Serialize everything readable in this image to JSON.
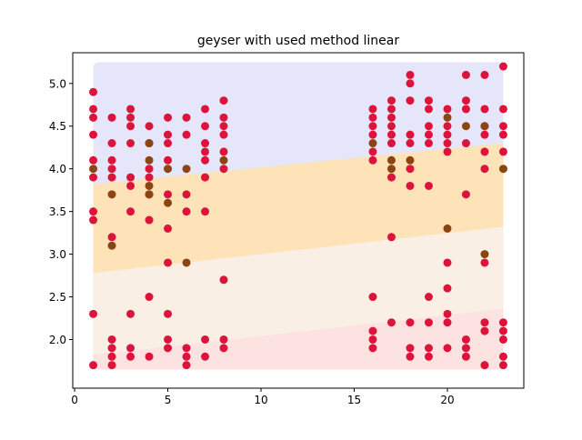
{
  "chart_data": {
    "type": "scatter",
    "title": "geyser with used method linear",
    "xlabel": "",
    "ylabel": "",
    "xlim": [
      -0.1,
      24.1
    ],
    "ylim": [
      1.43,
      5.36
    ],
    "xticks": [
      0,
      5,
      10,
      15,
      20
    ],
    "xtick_labels": [
      "0",
      "5",
      "10",
      "15",
      "20"
    ],
    "yticks": [
      2.0,
      2.5,
      3.0,
      3.5,
      4.0,
      4.5,
      5.0
    ],
    "ytick_labels": [
      "2.0",
      "2.5",
      "3.0",
      "3.5",
      "4.0",
      "4.5",
      "5.0"
    ],
    "grid": false,
    "legend": "none",
    "background_regions": {
      "description": "shaded decision regions from a linear fit (bottom to top)",
      "x_range": [
        1,
        23
      ],
      "y_range": [
        1.65,
        5.25
      ],
      "regions": [
        {
          "color": "#fde2e2",
          "upper_boundary": [
            [
              1,
              1.82
            ],
            [
              23,
              2.36
            ]
          ]
        },
        {
          "color": "#faefe4",
          "upper_boundary": [
            [
              1,
              2.78
            ],
            [
              23,
              3.32
            ]
          ]
        },
        {
          "color": "#fde3b7",
          "upper_boundary": [
            [
              1,
              3.82
            ],
            [
              23,
              4.3
            ]
          ]
        },
        {
          "color": "#e6e6fa",
          "upper_boundary": null
        }
      ]
    },
    "series": [
      {
        "color": "#dc143c",
        "points": [
          [
            1,
            4.9
          ],
          [
            1,
            4.7
          ],
          [
            1,
            4.6
          ],
          [
            1,
            4.4
          ],
          [
            1,
            4.1
          ],
          [
            1,
            3.9
          ],
          [
            1,
            3.5
          ],
          [
            1,
            3.4
          ],
          [
            1,
            2.3
          ],
          [
            1,
            1.7
          ],
          [
            2,
            4.6
          ],
          [
            2,
            4.3
          ],
          [
            2,
            4.1
          ],
          [
            2,
            4.0
          ],
          [
            2,
            3.9
          ],
          [
            2,
            3.2
          ],
          [
            2,
            2.0
          ],
          [
            2,
            1.9
          ],
          [
            2,
            1.8
          ],
          [
            2,
            1.7
          ],
          [
            3,
            4.7
          ],
          [
            3,
            4.6
          ],
          [
            3,
            4.5
          ],
          [
            3,
            4.3
          ],
          [
            3,
            3.9
          ],
          [
            3,
            3.8
          ],
          [
            3,
            3.5
          ],
          [
            3,
            2.3
          ],
          [
            3,
            1.9
          ],
          [
            3,
            1.8
          ],
          [
            4,
            4.5
          ],
          [
            4,
            4.3
          ],
          [
            4,
            4.0
          ],
          [
            4,
            3.9
          ],
          [
            4,
            3.7
          ],
          [
            4,
            3.4
          ],
          [
            4,
            2.5
          ],
          [
            4,
            1.8
          ],
          [
            5,
            4.6
          ],
          [
            5,
            4.4
          ],
          [
            5,
            4.3
          ],
          [
            5,
            4.1
          ],
          [
            5,
            3.7
          ],
          [
            5,
            3.3
          ],
          [
            5,
            2.9
          ],
          [
            5,
            2.3
          ],
          [
            5,
            2.0
          ],
          [
            5,
            1.9
          ],
          [
            6,
            4.6
          ],
          [
            6,
            4.4
          ],
          [
            6,
            3.7
          ],
          [
            6,
            3.5
          ],
          [
            6,
            1.9
          ],
          [
            6,
            1.8
          ],
          [
            6,
            1.7
          ],
          [
            7,
            4.7
          ],
          [
            7,
            4.5
          ],
          [
            7,
            4.3
          ],
          [
            7,
            4.2
          ],
          [
            7,
            4.1
          ],
          [
            7,
            3.9
          ],
          [
            7,
            3.5
          ],
          [
            7,
            2.0
          ],
          [
            7,
            1.8
          ],
          [
            8,
            4.8
          ],
          [
            8,
            4.6
          ],
          [
            8,
            4.5
          ],
          [
            8,
            4.4
          ],
          [
            8,
            4.2
          ],
          [
            8,
            4.0
          ],
          [
            8,
            2.7
          ],
          [
            8,
            2.0
          ],
          [
            8,
            1.9
          ],
          [
            16,
            4.7
          ],
          [
            16,
            4.6
          ],
          [
            16,
            4.5
          ],
          [
            16,
            4.4
          ],
          [
            16,
            4.2
          ],
          [
            16,
            4.1
          ],
          [
            16,
            2.5
          ],
          [
            16,
            2.1
          ],
          [
            16,
            2.0
          ],
          [
            16,
            1.9
          ],
          [
            17,
            4.8
          ],
          [
            17,
            4.7
          ],
          [
            17,
            4.6
          ],
          [
            17,
            4.5
          ],
          [
            17,
            4.4
          ],
          [
            17,
            4.3
          ],
          [
            17,
            3.9
          ],
          [
            17,
            3.2
          ],
          [
            17,
            2.2
          ],
          [
            18,
            5.1
          ],
          [
            18,
            5.0
          ],
          [
            18,
            4.8
          ],
          [
            18,
            4.4
          ],
          [
            18,
            4.3
          ],
          [
            18,
            4.0
          ],
          [
            18,
            3.8
          ],
          [
            18,
            2.2
          ],
          [
            18,
            1.9
          ],
          [
            18,
            1.8
          ],
          [
            19,
            4.8
          ],
          [
            19,
            4.7
          ],
          [
            19,
            4.5
          ],
          [
            19,
            4.4
          ],
          [
            19,
            4.3
          ],
          [
            19,
            3.8
          ],
          [
            19,
            2.5
          ],
          [
            19,
            2.2
          ],
          [
            19,
            1.9
          ],
          [
            19,
            1.8
          ],
          [
            20,
            4.7
          ],
          [
            20,
            4.5
          ],
          [
            20,
            4.4
          ],
          [
            20,
            4.3
          ],
          [
            20,
            4.2
          ],
          [
            20,
            2.9
          ],
          [
            20,
            2.6
          ],
          [
            20,
            2.3
          ],
          [
            20,
            2.2
          ],
          [
            20,
            1.9
          ],
          [
            21,
            5.1
          ],
          [
            21,
            4.8
          ],
          [
            21,
            4.7
          ],
          [
            21,
            4.3
          ],
          [
            21,
            3.7
          ],
          [
            21,
            2.0
          ],
          [
            21,
            1.9
          ],
          [
            21,
            1.8
          ],
          [
            22,
            5.1
          ],
          [
            22,
            4.7
          ],
          [
            22,
            4.5
          ],
          [
            22,
            4.4
          ],
          [
            22,
            4.2
          ],
          [
            22,
            4.0
          ],
          [
            22,
            2.9
          ],
          [
            22,
            2.2
          ],
          [
            22,
            2.1
          ],
          [
            22,
            1.7
          ],
          [
            23,
            5.2
          ],
          [
            23,
            4.7
          ],
          [
            23,
            4.5
          ],
          [
            23,
            4.4
          ],
          [
            23,
            4.2
          ],
          [
            23,
            2.2
          ],
          [
            23,
            2.1
          ],
          [
            23,
            2.0
          ],
          [
            23,
            1.8
          ],
          [
            23,
            1.7
          ]
        ]
      },
      {
        "color": "#8b4513",
        "points": [
          [
            1,
            4.0
          ],
          [
            2,
            3.7
          ],
          [
            2,
            3.1
          ],
          [
            4,
            4.3
          ],
          [
            4,
            4.1
          ],
          [
            4,
            3.8
          ],
          [
            4,
            3.7
          ],
          [
            5,
            4.0
          ],
          [
            5,
            3.6
          ],
          [
            6,
            4.0
          ],
          [
            6,
            2.9
          ],
          [
            8,
            4.1
          ],
          [
            16,
            4.3
          ],
          [
            17,
            4.1
          ],
          [
            17,
            4.0
          ],
          [
            18,
            4.1
          ],
          [
            20,
            4.6
          ],
          [
            20,
            3.3
          ],
          [
            21,
            4.5
          ],
          [
            22,
            4.5
          ],
          [
            22,
            3.0
          ],
          [
            23,
            4.0
          ]
        ]
      }
    ]
  }
}
